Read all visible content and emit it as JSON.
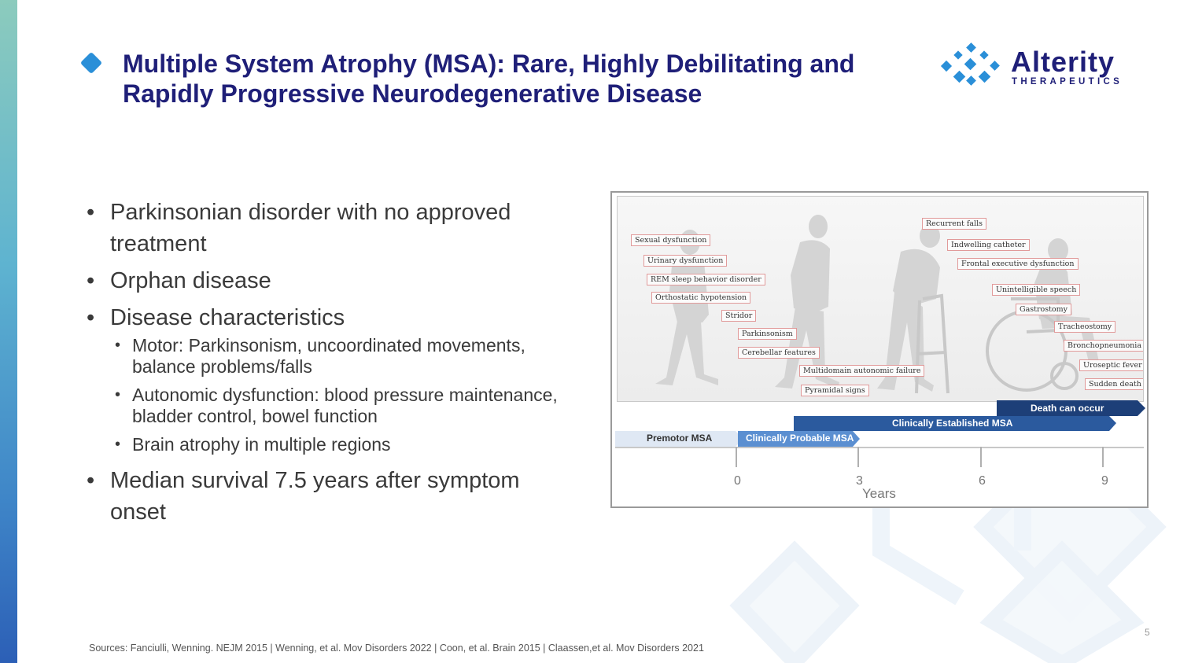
{
  "title": "Multiple System Atrophy (MSA): Rare, Highly Debilitating and Rapidly Progressive Neurodegenerative Disease",
  "logo": {
    "name": "Alterity",
    "sub": "THERAPEUTICS"
  },
  "bullets": {
    "b1": "Parkinsonian disorder with no approved treatment",
    "b2": "Orphan disease",
    "b3": "Disease characteristics",
    "sub1": "Motor: Parkinsonism, uncoordinated movements, balance problems/falls",
    "sub2": "Autonomic dysfunction: blood pressure maintenance, bladder control, bowel function",
    "sub3": "Brain atrophy in multiple regions",
    "b4": "Median survival 7.5 years after symptom onset"
  },
  "figure": {
    "tags": {
      "t1": "Sexual dysfunction",
      "t2": "Urinary dysfunction",
      "t3": "REM sleep behavior disorder",
      "t4": "Orthostatic hypotension",
      "t5": "Stridor",
      "t6": "Parkinsonism",
      "t7": "Cerebellar features",
      "t8": "Multidomain autonomic failure",
      "t9": "Pyramidal signs",
      "t10": "Recurrent falls",
      "t11": "Indwelling catheter",
      "t12": "Frontal executive dysfunction",
      "t13": "Unintelligible speech",
      "t14": "Gastrostomy",
      "t15": "Tracheostomy",
      "t16": "Bronchopneumonia",
      "t17": "Uroseptic fever",
      "t18": "Sudden death"
    },
    "phases": {
      "death": "Death can occur",
      "established": "Clinically Established MSA",
      "premotor": "Premotor MSA",
      "probable": "Clinically Probable MSA"
    },
    "ticks": {
      "t0": "0",
      "t3": "3",
      "t6": "6",
      "t9": "9"
    },
    "axis_title": "Years",
    "colors": {
      "dark": "#1d3f78",
      "mid": "#2b5a9e",
      "light": "#5b8fd1",
      "pale": "#dfe8f4"
    }
  },
  "page_number": "5",
  "sources": "Sources: Fanciulli, Wenning. NEJM 2015  |  Wenning, et al. Mov Disorders 2022  |  Coon, et al. Brain 2015 | Claassen,et al. Mov Disorders 2021"
}
